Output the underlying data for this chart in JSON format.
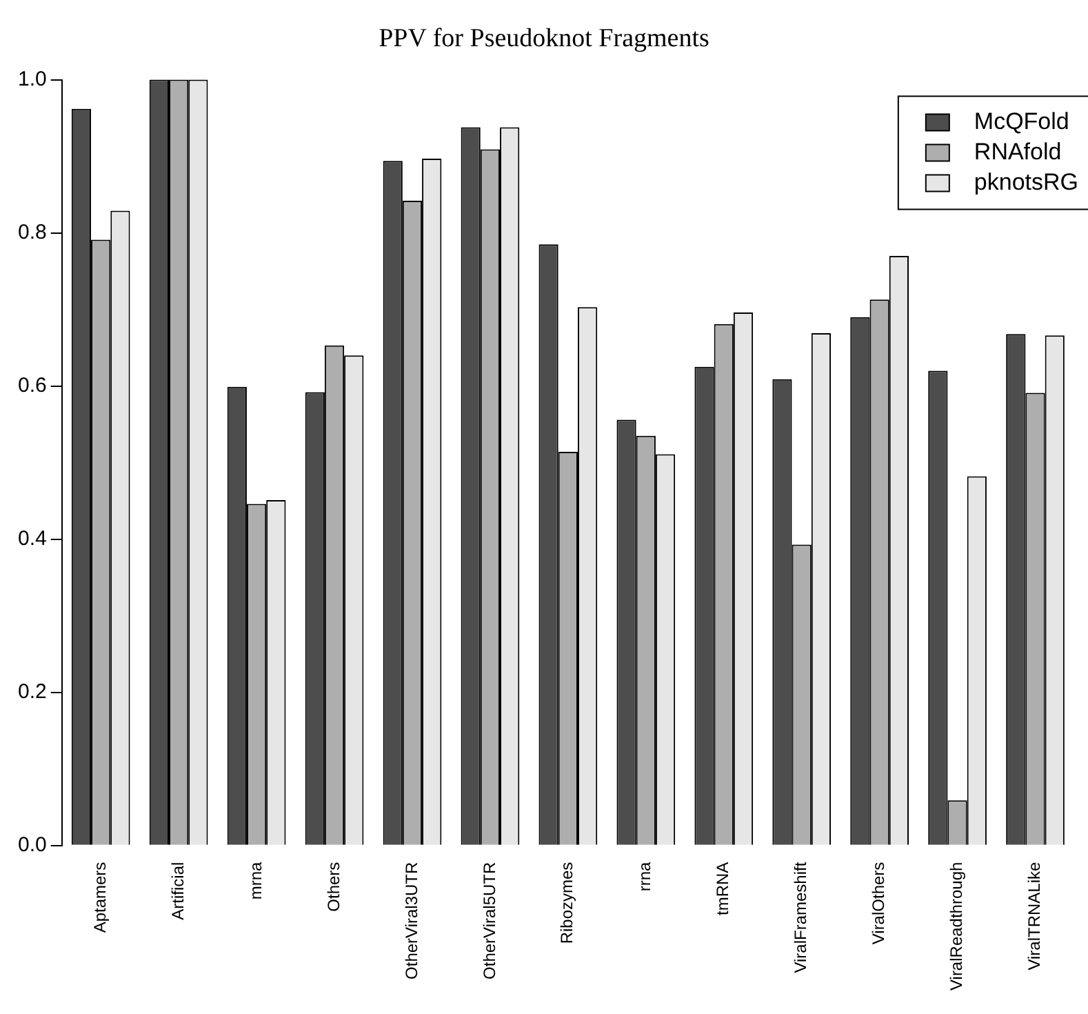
{
  "chart_data": {
    "type": "bar",
    "title": "PPV for Pseudoknot Fragments",
    "categories": [
      "Aptamers",
      "Artificial",
      "mrna",
      "Others",
      "OtherViral3UTR",
      "OtherViral5UTR",
      "Ribozymes",
      "rrna",
      "tmRNA",
      "ViralFrameshift",
      "ViralOthers",
      "ViralReadthrough",
      "ViralTRNALike"
    ],
    "series": [
      {
        "name": "McQFold",
        "color": "#4d4d4d",
        "values": [
          0.962,
          1.0,
          0.599,
          0.592,
          0.894,
          0.938,
          0.785,
          0.556,
          0.625,
          0.609,
          0.69,
          0.62,
          0.668
        ]
      },
      {
        "name": "RNAfold",
        "color": "#aeaeae",
        "values": [
          0.791,
          1.0,
          0.446,
          0.653,
          0.842,
          0.909,
          0.514,
          0.535,
          0.681,
          0.393,
          0.713,
          0.059,
          0.591
        ]
      },
      {
        "name": "pknotsRG",
        "color": "#e6e6e6",
        "values": [
          0.829,
          1.0,
          0.451,
          0.64,
          0.897,
          0.938,
          0.703,
          0.511,
          0.696,
          0.669,
          0.77,
          0.482,
          0.666
        ]
      }
    ],
    "ylim": [
      0,
      1.0
    ],
    "yticks": [
      {
        "value": 0,
        "label": "0.0"
      },
      {
        "value": 0.2,
        "label": "0.2"
      },
      {
        "value": 0.4,
        "label": "0.4"
      },
      {
        "value": 0.6,
        "label": "0.6"
      },
      {
        "value": 0.8,
        "label": "0.8"
      },
      {
        "value": 1.0,
        "label": "1.0"
      }
    ],
    "grid": false,
    "legend": "top right"
  }
}
